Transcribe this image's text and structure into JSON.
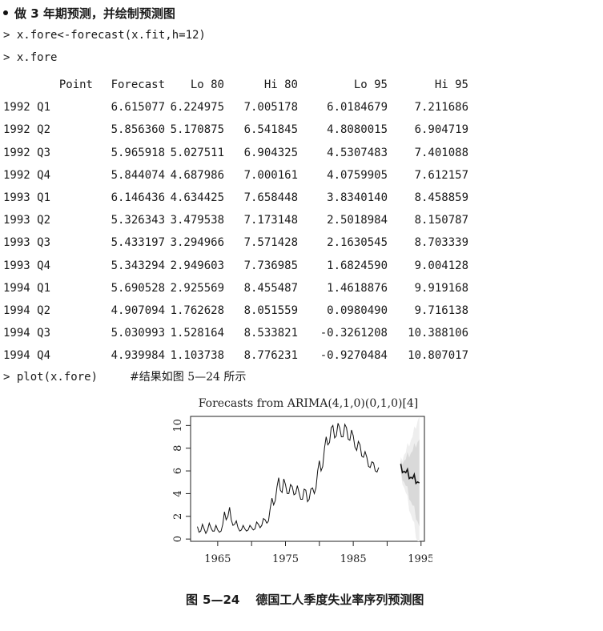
{
  "heading": "做 3 年期预测，并绘制预测图",
  "code_lines": [
    "> x.fore<-forecast(x.fit,h=12)",
    "> x.fore"
  ],
  "table": {
    "headers": [
      "Point",
      "Forecast",
      "Lo 80",
      "Hi 80",
      "Lo 95",
      "Hi 95"
    ],
    "rows": [
      [
        "1992 Q1",
        "6.615077",
        "6.224975",
        "7.005178",
        "6.0184679",
        "7.211686"
      ],
      [
        "1992 Q2",
        "5.856360",
        "5.170875",
        "6.541845",
        "4.8080015",
        "6.904719"
      ],
      [
        "1992 Q3",
        "5.965918",
        "5.027511",
        "6.904325",
        "4.5307483",
        "7.401088"
      ],
      [
        "1992 Q4",
        "5.844074",
        "4.687986",
        "7.000161",
        "4.0759905",
        "7.612157"
      ],
      [
        "1993 Q1",
        "6.146436",
        "4.634425",
        "7.658448",
        "3.8340140",
        "8.458859"
      ],
      [
        "1993 Q2",
        "5.326343",
        "3.479538",
        "7.173148",
        "2.5018984",
        "8.150787"
      ],
      [
        "1993 Q3",
        "5.433197",
        "3.294966",
        "7.571428",
        "2.1630545",
        "8.703339"
      ],
      [
        "1993 Q4",
        "5.343294",
        "2.949603",
        "7.736985",
        "1.6824590",
        "9.004128"
      ],
      [
        "1994 Q1",
        "5.690528",
        "2.925569",
        "8.455487",
        "1.4618876",
        "9.919168"
      ],
      [
        "1994 Q2",
        "4.907094",
        "1.762628",
        "8.051559",
        "0.0980490",
        "9.716138"
      ],
      [
        "1994 Q3",
        "5.030993",
        "1.528164",
        "8.533821",
        "-0.3261208",
        "10.388106"
      ],
      [
        "1994 Q4",
        "4.939984",
        "1.103738",
        "8.776231",
        "-0.9270484",
        "10.807017"
      ]
    ]
  },
  "plot_command": "> plot(x.fore)",
  "plot_comment": "#结果如图 5—24 所示",
  "caption": {
    "label": "图",
    "number": "5—24",
    "text": "德国工人季度失业率序列预测图"
  },
  "chart_data": {
    "type": "line",
    "title": "Forecasts from ARIMA(4,1,0)(0,1,0)[4]",
    "xlabel": "",
    "ylabel": "",
    "xlim": [
      1961,
      1995.5
    ],
    "ylim": [
      -0.2,
      10.8
    ],
    "x_ticks": [
      1965,
      1975,
      1985,
      1995
    ],
    "y_ticks": [
      0,
      2,
      4,
      6,
      8,
      10
    ],
    "history": {
      "start": 1962.0,
      "frequency": 4,
      "values": [
        1.1,
        0.6,
        0.7,
        1.3,
        0.9,
        0.5,
        0.8,
        1.4,
        1.0,
        0.7,
        0.7,
        1.2,
        0.8,
        0.6,
        0.7,
        1.3,
        2.4,
        1.7,
        2.0,
        2.8,
        1.7,
        1.2,
        1.3,
        1.6,
        1.0,
        0.7,
        0.8,
        1.2,
        0.9,
        0.7,
        0.8,
        1.2,
        1.0,
        0.8,
        0.9,
        1.5,
        1.3,
        1.0,
        1.2,
        1.8,
        1.7,
        1.4,
        1.6,
        2.7,
        3.6,
        3.0,
        3.4,
        4.6,
        5.4,
        4.3,
        4.1,
        5.3,
        4.8,
        4.0,
        4.0,
        4.8,
        4.6,
        3.9,
        4.0,
        4.7,
        4.1,
        3.5,
        3.5,
        4.4,
        4.3,
        3.3,
        3.5,
        4.4,
        4.5,
        4.0,
        4.5,
        6.0,
        6.9,
        6.0,
        6.4,
        8.0,
        9.0,
        8.3,
        8.5,
        9.8,
        10.0,
        8.9,
        9.1,
        10.2,
        9.8,
        9.0,
        9.0,
        10.1,
        9.8,
        8.8,
        8.7,
        9.6,
        9.1,
        8.1,
        7.8,
        8.6,
        8.3,
        7.3,
        7.2,
        7.7,
        7.2,
        6.4,
        6.3,
        6.8,
        6.7,
        6.0,
        5.9,
        6.3
      ],
      "color": "#111111"
    },
    "forecast": {
      "start": 1992.0,
      "frequency": 4,
      "point": [
        6.615077,
        5.85636,
        5.965918,
        5.844074,
        6.146436,
        5.326343,
        5.433197,
        5.343294,
        5.690528,
        4.907094,
        5.030993,
        4.939984
      ],
      "lo80": [
        6.224975,
        5.170875,
        5.027511,
        4.687986,
        4.634425,
        3.479538,
        3.294966,
        2.949603,
        2.925569,
        1.762628,
        1.528164,
        1.103738
      ],
      "hi80": [
        7.005178,
        6.541845,
        6.904325,
        7.000161,
        7.658448,
        7.173148,
        7.571428,
        7.736985,
        8.455487,
        8.051559,
        8.533821,
        8.776231
      ],
      "lo95": [
        6.0184679,
        4.8080015,
        4.5307483,
        4.0759905,
        3.834014,
        2.5018984,
        2.1630545,
        1.682459,
        1.4618876,
        0.098049,
        -0.3261208,
        -0.9270484
      ],
      "hi95": [
        7.211686,
        6.904719,
        7.401088,
        7.612157,
        8.458859,
        8.150787,
        8.703339,
        9.004128,
        9.919168,
        9.716138,
        10.388106,
        10.807017
      ],
      "color": "#111111",
      "band80_color": "#d9d9d9",
      "band95_color": "#eeeeee"
    }
  }
}
